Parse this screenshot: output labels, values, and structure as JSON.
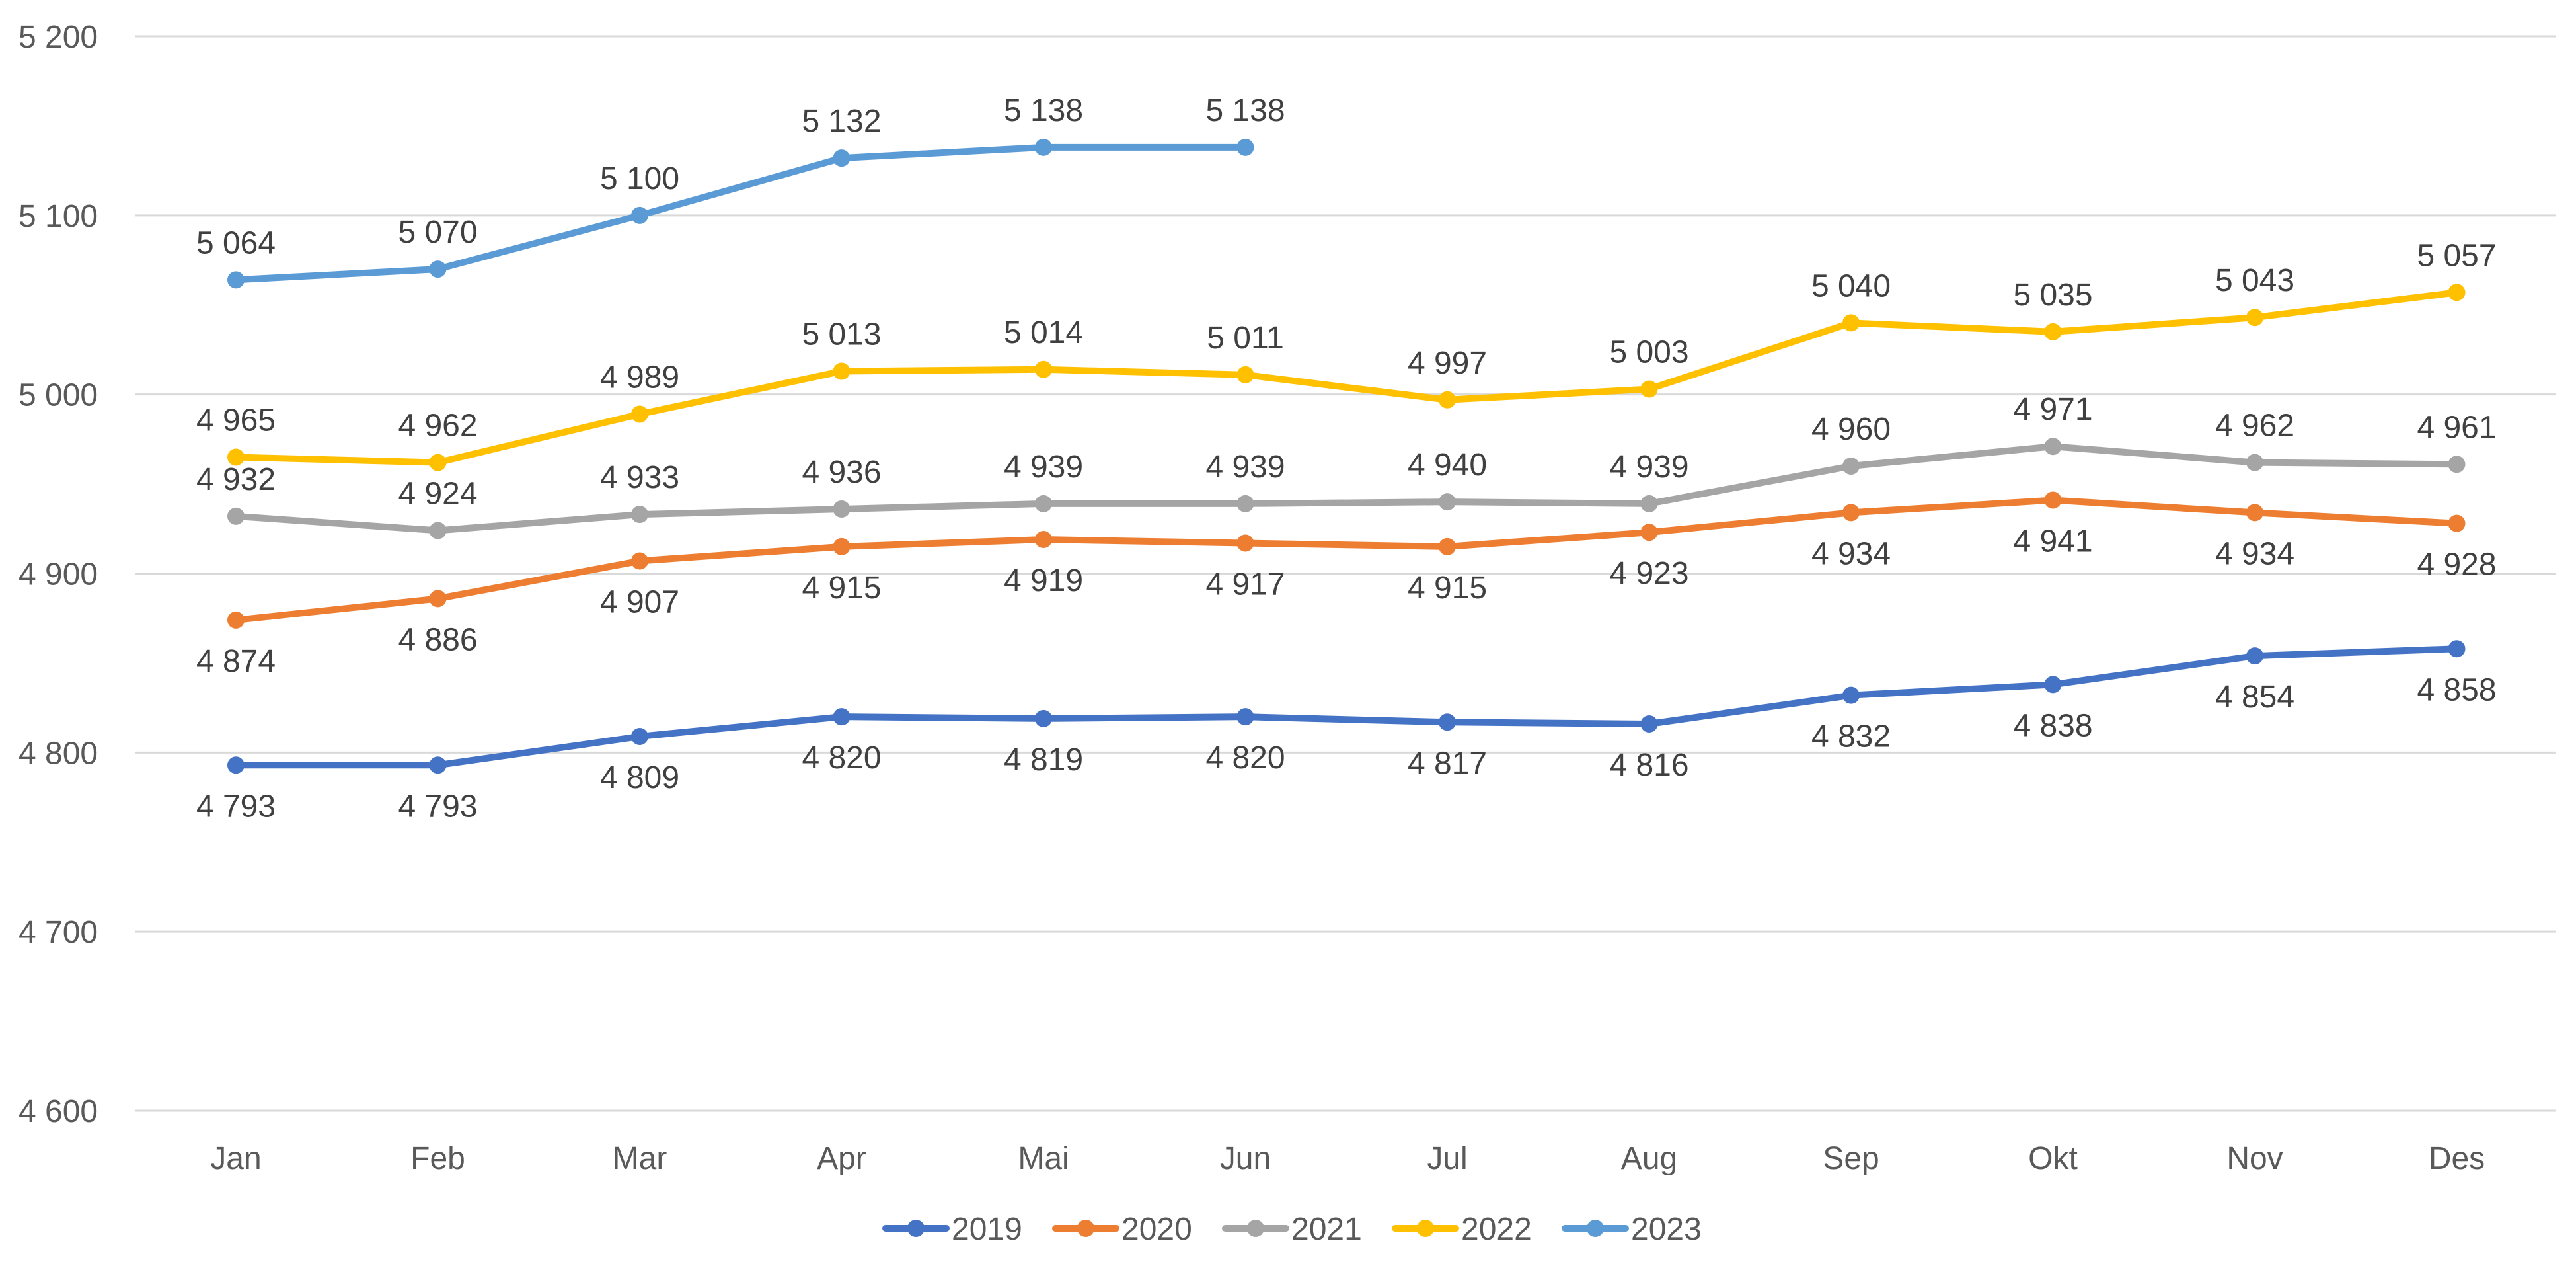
{
  "chart_data": {
    "type": "line",
    "title": "",
    "xlabel": "",
    "ylabel": "",
    "categories": [
      "Jan",
      "Feb",
      "Mar",
      "Apr",
      "Mai",
      "Jun",
      "Jul",
      "Aug",
      "Sep",
      "Okt",
      "Nov",
      "Des"
    ],
    "ylim": [
      4600,
      5200
    ],
    "yticks": [
      4600,
      4700,
      4800,
      4900,
      5000,
      5100,
      5200
    ],
    "ytick_labels": [
      "4 600",
      "4 700",
      "4 800",
      "4 900",
      "5 000",
      "5 100",
      "5 200"
    ],
    "grid": true,
    "legend_position": "bottom",
    "series": [
      {
        "name": "2019",
        "color": "#4472C4",
        "values": [
          4793,
          4793,
          4809,
          4820,
          4819,
          4820,
          4817,
          4816,
          4832,
          4838,
          4854,
          4858
        ],
        "labels": [
          "4 793",
          "4 793",
          "4 809",
          "4 820",
          "4 819",
          "4 820",
          "4 817",
          "4 816",
          "4 832",
          "4 838",
          "4 854",
          "4 858"
        ],
        "label_position": "below"
      },
      {
        "name": "2020",
        "color": "#ED7D31",
        "values": [
          4874,
          4886,
          4907,
          4915,
          4919,
          4917,
          4915,
          4923,
          4934,
          4941,
          4934,
          4928
        ],
        "labels": [
          "4 874",
          "4 886",
          "4 907",
          "4 915",
          "4 919",
          "4 917",
          "4 915",
          "4 923",
          "4 934",
          "4 941",
          "4 934",
          "4 928"
        ],
        "label_position": "below"
      },
      {
        "name": "2021",
        "color": "#A5A5A5",
        "values": [
          4932,
          4924,
          4933,
          4936,
          4939,
          4939,
          4940,
          4939,
          4960,
          4971,
          4962,
          4961
        ],
        "labels": [
          "4 932",
          "4 924",
          "4 933",
          "4 936",
          "4 939",
          "4 939",
          "4 940",
          "4 939",
          "4 960",
          "4 971",
          "4 962",
          "4 961"
        ],
        "label_position": "above"
      },
      {
        "name": "2022",
        "color": "#FFC000",
        "values": [
          4965,
          4962,
          4989,
          5013,
          5014,
          5011,
          4997,
          5003,
          5040,
          5035,
          5043,
          5057
        ],
        "labels": [
          "4 965",
          "4 962",
          "4 989",
          "5 013",
          "5 014",
          "5 011",
          "4 997",
          "5 003",
          "5 040",
          "5 035",
          "5 043",
          "5 057"
        ],
        "label_position": "above"
      },
      {
        "name": "2023",
        "color": "#5B9BD5",
        "values": [
          5064,
          5070,
          5100,
          5132,
          5138,
          5138,
          null,
          null,
          null,
          null,
          null,
          null
        ],
        "labels": [
          "5 064",
          "5 070",
          "5 100",
          "5 132",
          "5 138",
          "5 138",
          null,
          null,
          null,
          null,
          null,
          null
        ],
        "label_position": "above"
      }
    ]
  }
}
